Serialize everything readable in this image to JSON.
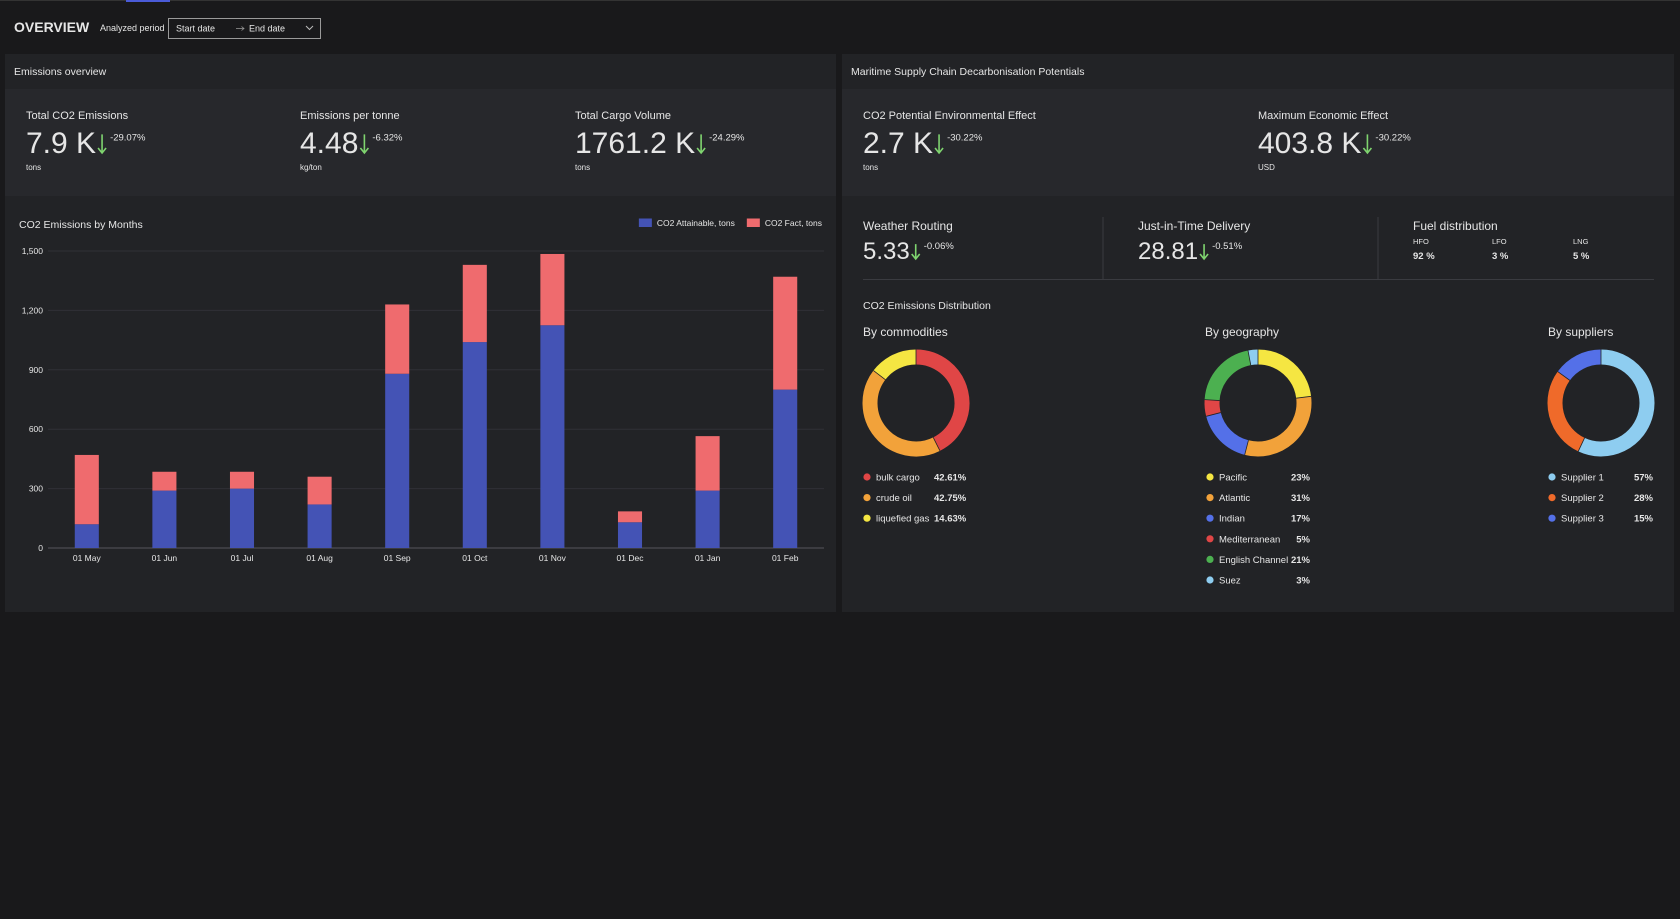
{
  "header": {
    "title": "OVERVIEW",
    "period_label": "Analyzed period",
    "start_placeholder": "Start date",
    "end_placeholder": "End date"
  },
  "emissions_overview": {
    "title": "Emissions overview",
    "kpis": [
      {
        "label": "Total CO2 Emissions",
        "value": "7.9 K",
        "change": "-29.07%",
        "unit": "tons"
      },
      {
        "label": "Emissions per tonne",
        "value": "4.48",
        "change": "-6.32%",
        "unit": "kg/ton"
      },
      {
        "label": "Total Cargo Volume",
        "value": "1761.2 K",
        "change": "-24.29%",
        "unit": "tons"
      }
    ]
  },
  "decarbonisation": {
    "title": "Maritime Supply Chain Decarbonisation Potentials",
    "kpis": [
      {
        "label": "CO2 Potential Environmental Effect",
        "value": "2.7 K",
        "change": "-30.22%",
        "unit": "tons"
      },
      {
        "label": "Maximum Economic Effect",
        "value": "403.8 K",
        "change": "-30.22%",
        "unit": "USD"
      }
    ],
    "measures": [
      {
        "label": "Weather Routing",
        "value": "5.33",
        "change": "-0.06%"
      },
      {
        "label": "Just-in-Time Delivery",
        "value": "28.81",
        "change": "-0.51%"
      }
    ],
    "fuel": {
      "label": "Fuel distribution",
      "items": [
        {
          "name": "HFO",
          "value": "92 %"
        },
        {
          "name": "LFO",
          "value": "3 %"
        },
        {
          "name": "LNG",
          "value": "5 %"
        }
      ]
    },
    "distribution_title": "CO2 Emissions Distribution"
  },
  "chart_data": [
    {
      "type": "bar",
      "stacked": true,
      "title": "CO2 Emissions by Months",
      "categories": [
        "01 May",
        "01 Jun",
        "01 Jul",
        "01 Aug",
        "01 Sep",
        "01 Oct",
        "01 Nov",
        "01 Dec",
        "01 Jan",
        "01 Feb"
      ],
      "series": [
        {
          "name": "CO2 Attainable, tons",
          "color": "#4453b5",
          "values": [
            120,
            290,
            300,
            220,
            880,
            1040,
            1125,
            130,
            290,
            800
          ]
        },
        {
          "name": "CO2 Fact, tons",
          "color": "#ef6b6e",
          "values": [
            350,
            95,
            85,
            140,
            350,
            390,
            360,
            55,
            275,
            570
          ]
        }
      ],
      "ylim": [
        0,
        1500
      ],
      "yticks": [
        0,
        300,
        600,
        900,
        {
          "value": 1200,
          "label": "1,200"
        },
        {
          "value": 1500,
          "label": "1,500"
        }
      ],
      "grid": true,
      "legend": "top-right"
    },
    {
      "type": "donut",
      "title": "By commodities",
      "categories": [
        "bulk cargo",
        "crude oil",
        "liquefied gas"
      ],
      "values": [
        42.61,
        42.75,
        14.63
      ],
      "value_labels": [
        "42.61%",
        "42.75%",
        "14.63%"
      ],
      "colors": [
        "#e04646",
        "#f2a23a",
        "#f5e642"
      ]
    },
    {
      "type": "donut",
      "title": "By geography",
      "categories": [
        "Pacific",
        "Atlantic",
        "Indian",
        "Mediterranean",
        "English Channel",
        "Suez"
      ],
      "values": [
        23,
        31,
        17,
        5,
        21,
        3
      ],
      "value_labels": [
        "23%",
        "31%",
        "17%",
        "5%",
        "21%",
        "3%"
      ],
      "colors": [
        "#f5e642",
        "#f2a23a",
        "#5470e8",
        "#e04646",
        "#4cb050",
        "#8ecdf0"
      ]
    },
    {
      "type": "donut",
      "title": "By suppliers",
      "categories": [
        "Supplier 1",
        "Supplier 2",
        "Supplier 3"
      ],
      "values": [
        57,
        28,
        15
      ],
      "value_labels": [
        "57%",
        "28%",
        "15%"
      ],
      "colors": [
        "#8ecdf0",
        "#ef6a2a",
        "#5470e8"
      ]
    }
  ]
}
